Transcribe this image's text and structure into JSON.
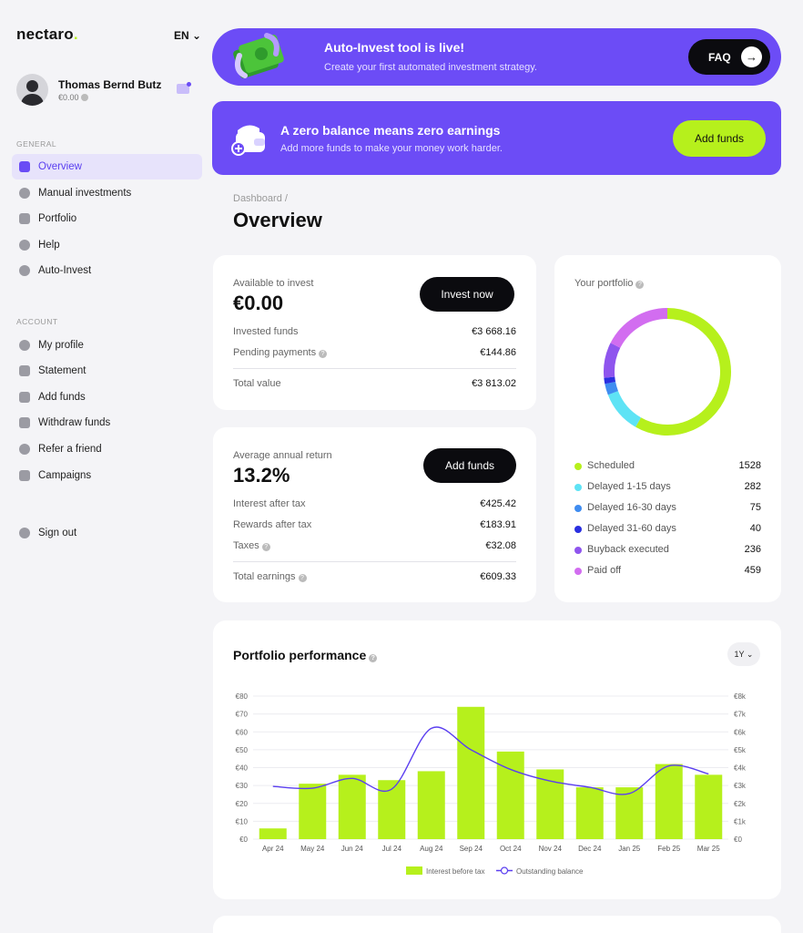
{
  "brand": {
    "name": "nectaro",
    "dot": "."
  },
  "language": "EN ⌄",
  "user": {
    "name": "Thomas Bernd Butz",
    "balance": "€0.00"
  },
  "sidebar": {
    "general_label": "GENERAL",
    "general_items": [
      {
        "label": "Overview",
        "active": true
      },
      {
        "label": "Manual investments"
      },
      {
        "label": "Portfolio"
      },
      {
        "label": "Help"
      },
      {
        "label": "Auto-Invest"
      }
    ],
    "account_label": "ACCOUNT",
    "account_items": [
      {
        "label": "My profile"
      },
      {
        "label": "Statement"
      },
      {
        "label": "Add funds"
      },
      {
        "label": "Withdraw funds"
      },
      {
        "label": "Refer a friend"
      },
      {
        "label": "Campaigns"
      }
    ],
    "sign_out": "Sign out"
  },
  "banner_autoinvest": {
    "title": "Auto-Invest tool is live!",
    "subtitle": "Create your first automated investment strategy.",
    "button": "FAQ",
    "arrow": "→"
  },
  "banner_balance": {
    "title": "A zero balance means zero earnings",
    "subtitle": "Add more funds to make your money work harder.",
    "button": "Add funds"
  },
  "breadcrumb": "Dashboard /",
  "page_title": "Overview",
  "available": {
    "label": "Available to invest",
    "value": "€0.00",
    "button": "Invest now",
    "rows": [
      {
        "label": "Invested funds",
        "value": "€3 668.16"
      },
      {
        "label": "Pending payments",
        "value": "€144.86"
      }
    ],
    "total_label": "Total value",
    "total_value": "€3 813.02"
  },
  "returns": {
    "label": "Average annual return",
    "value": "13.2%",
    "button": "Add funds",
    "rows": [
      {
        "label": "Interest after tax",
        "value": "€425.42"
      },
      {
        "label": "Rewards after tax",
        "value": "€183.91"
      },
      {
        "label": "Taxes",
        "value": "€32.08"
      }
    ],
    "total_label": "Total earnings",
    "total_value": "€609.33"
  },
  "portfolio": {
    "title": "Your portfolio",
    "segments": [
      {
        "label": "Scheduled",
        "value": "1528",
        "color": "#b6f01c"
      },
      {
        "label": "Delayed 1-15 days",
        "value": "282",
        "color": "#5ee3f5"
      },
      {
        "label": "Delayed 16-30 days",
        "value": "75",
        "color": "#3f8cf0"
      },
      {
        "label": "Delayed 31-60 days",
        "value": "40",
        "color": "#2a2fe0"
      },
      {
        "label": "Buyback executed",
        "value": "236",
        "color": "#8f55ee"
      },
      {
        "label": "Paid off",
        "value": "459",
        "color": "#d26df0"
      }
    ]
  },
  "performance": {
    "title": "Portfolio performance",
    "range": "1Y ⌄",
    "legend_bar": "Interest before tax",
    "legend_line": "Outstanding balance"
  },
  "chart_data": {
    "type": "bar",
    "categories": [
      "Apr 24",
      "May 24",
      "Jun 24",
      "Jul 24",
      "Aug 24",
      "Sep 24",
      "Oct 24",
      "Nov 24",
      "Dec 24",
      "Jan 25",
      "Feb 25",
      "Mar 25"
    ],
    "series": [
      {
        "name": "Interest before tax",
        "type": "bar",
        "axis": "left",
        "values": [
          6,
          31,
          36,
          33,
          38,
          74,
          49,
          39,
          29,
          29,
          42,
          36
        ]
      },
      {
        "name": "Outstanding balance",
        "type": "line",
        "axis": "right",
        "values": [
          2950,
          2850,
          3400,
          2800,
          6200,
          5000,
          3900,
          3250,
          2900,
          2550,
          4100,
          3650
        ]
      }
    ],
    "y_left": {
      "range": [
        0,
        80
      ],
      "ticks": [
        "€0",
        "€10",
        "€20",
        "€30",
        "€40",
        "€50",
        "€60",
        "€70",
        "€80"
      ]
    },
    "y_right": {
      "range": [
        0,
        8000
      ],
      "ticks": [
        "€0",
        "€1k",
        "€2k",
        "€3k",
        "€4k",
        "€5k",
        "€6k",
        "€7k",
        "€8k"
      ]
    },
    "grid": true,
    "legend_position": "bottom"
  }
}
